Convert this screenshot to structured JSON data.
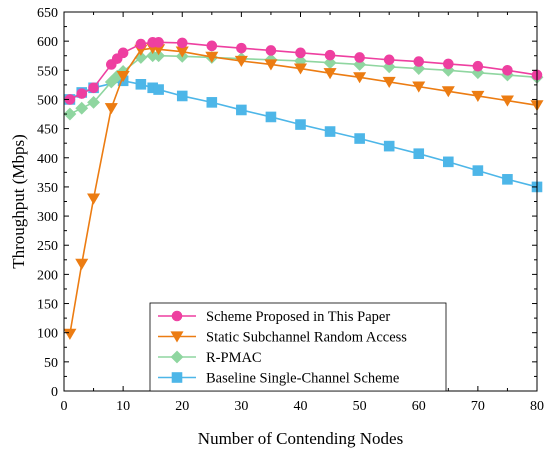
{
  "chart_data": {
    "type": "line",
    "xlabel": "Number of Contending Nodes",
    "ylabel": "Throughput (Mbps)",
    "xlim": [
      0,
      80
    ],
    "ylim": [
      0,
      650
    ],
    "xticks": [
      0,
      10,
      20,
      30,
      40,
      50,
      60,
      70,
      80
    ],
    "yticks": [
      0,
      50,
      100,
      150,
      200,
      250,
      300,
      350,
      400,
      450,
      500,
      550,
      600,
      650
    ],
    "grid": false,
    "legend_position": "bottom-center",
    "series": [
      {
        "name": "Scheme Proposed in This Paper",
        "color": "#ee3fa0",
        "marker": "circle",
        "x": [
          1,
          3,
          5,
          8,
          9,
          10,
          13,
          15,
          16,
          20,
          25,
          30,
          35,
          40,
          45,
          50,
          55,
          60,
          65,
          70,
          75,
          80
        ],
        "y": [
          500,
          510,
          520,
          560,
          570,
          580,
          595,
          598,
          598,
          597,
          592,
          588,
          584,
          580,
          576,
          572,
          568,
          565,
          561,
          557,
          550,
          542
        ]
      },
      {
        "name": "Static Subchannel Random Access",
        "color": "#ec7c12",
        "marker": "triangle-down",
        "x": [
          1,
          3,
          5,
          8,
          10,
          13,
          15,
          16,
          20,
          25,
          30,
          35,
          40,
          45,
          50,
          55,
          60,
          65,
          70,
          75,
          80
        ],
        "y": [
          98,
          218,
          330,
          485,
          540,
          585,
          588,
          586,
          582,
          573,
          566,
          560,
          553,
          545,
          538,
          530,
          522,
          514,
          506,
          498,
          490
        ]
      },
      {
        "name": "R-PMAC",
        "color": "#8fd6a0",
        "marker": "diamond",
        "x": [
          1,
          3,
          5,
          8,
          9,
          10,
          13,
          15,
          16,
          20,
          25,
          30,
          35,
          40,
          45,
          50,
          55,
          60,
          65,
          70,
          75,
          80
        ],
        "y": [
          475,
          485,
          495,
          530,
          540,
          548,
          572,
          575,
          575,
          574,
          572,
          570,
          568,
          566,
          563,
          560,
          556,
          553,
          550,
          546,
          542,
          538
        ]
      },
      {
        "name": "Baseline Single-Channel Scheme",
        "color": "#4db6e8",
        "marker": "square",
        "x": [
          1,
          3,
          5,
          10,
          13,
          15,
          16,
          20,
          25,
          30,
          35,
          40,
          45,
          50,
          55,
          60,
          65,
          70,
          75,
          80
        ],
        "y": [
          500,
          512,
          520,
          532,
          526,
          520,
          517,
          506,
          495,
          482,
          470,
          457,
          445,
          433,
          420,
          407,
          393,
          378,
          363,
          350
        ]
      }
    ]
  }
}
